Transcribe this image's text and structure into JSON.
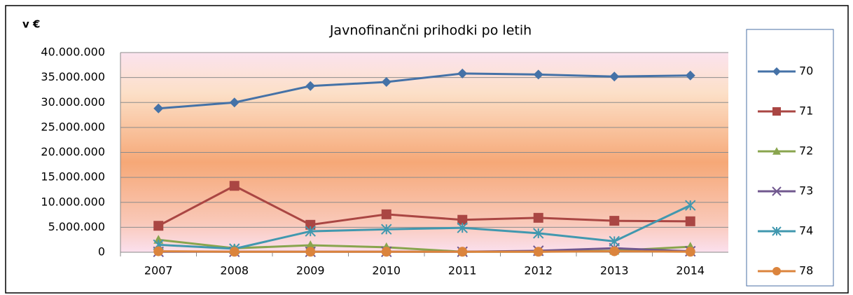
{
  "chart_data": {
    "type": "line",
    "title": "Javnofinančni prihodki po letih",
    "y_label": "v €",
    "categories": [
      "2007",
      "2008",
      "2009",
      "2010",
      "2011",
      "2012",
      "2013",
      "2014"
    ],
    "series": [
      {
        "name": "70",
        "color": "#4572a7",
        "marker": "diamond",
        "values": [
          28800000,
          30000000,
          33300000,
          34100000,
          35800000,
          35600000,
          35200000,
          35400000
        ]
      },
      {
        "name": "71",
        "color": "#aa4643",
        "marker": "square",
        "values": [
          5300000,
          13300000,
          5500000,
          7600000,
          6500000,
          6900000,
          6300000,
          6200000
        ]
      },
      {
        "name": "72",
        "color": "#89a54e",
        "marker": "triangle",
        "values": [
          2500000,
          800000,
          1400000,
          1000000,
          100000,
          100000,
          300000,
          1100000
        ]
      },
      {
        "name": "73",
        "color": "#71588f",
        "marker": "x",
        "values": [
          100000,
          100000,
          100000,
          100000,
          100000,
          300000,
          800000,
          200000
        ]
      },
      {
        "name": "74",
        "color": "#4198af",
        "marker": "star",
        "values": [
          1500000,
          700000,
          4200000,
          4600000,
          4900000,
          3800000,
          2200000,
          9400000
        ]
      },
      {
        "name": "78",
        "color": "#db843d",
        "marker": "circle",
        "values": [
          200000,
          100000,
          100000,
          100000,
          100000,
          100000,
          200000,
          100000
        ]
      }
    ],
    "ylim": [
      0,
      40000000
    ],
    "yticks": [
      0,
      {
        "value": 5000000,
        "label": "5.000.000"
      },
      {
        "value": 10000000,
        "label": "10.000.000"
      },
      {
        "value": 15000000,
        "label": "15.000.000"
      },
      {
        "value": 20000000,
        "label": "20.000.000"
      },
      {
        "value": 25000000,
        "label": "25.000.000"
      },
      {
        "value": 30000000,
        "label": "30.000.000"
      },
      {
        "value": 35000000,
        "label": "35.000.000"
      },
      {
        "value": 40000000,
        "label": "40.000.000"
      }
    ],
    "grid": true,
    "legend": "right"
  }
}
